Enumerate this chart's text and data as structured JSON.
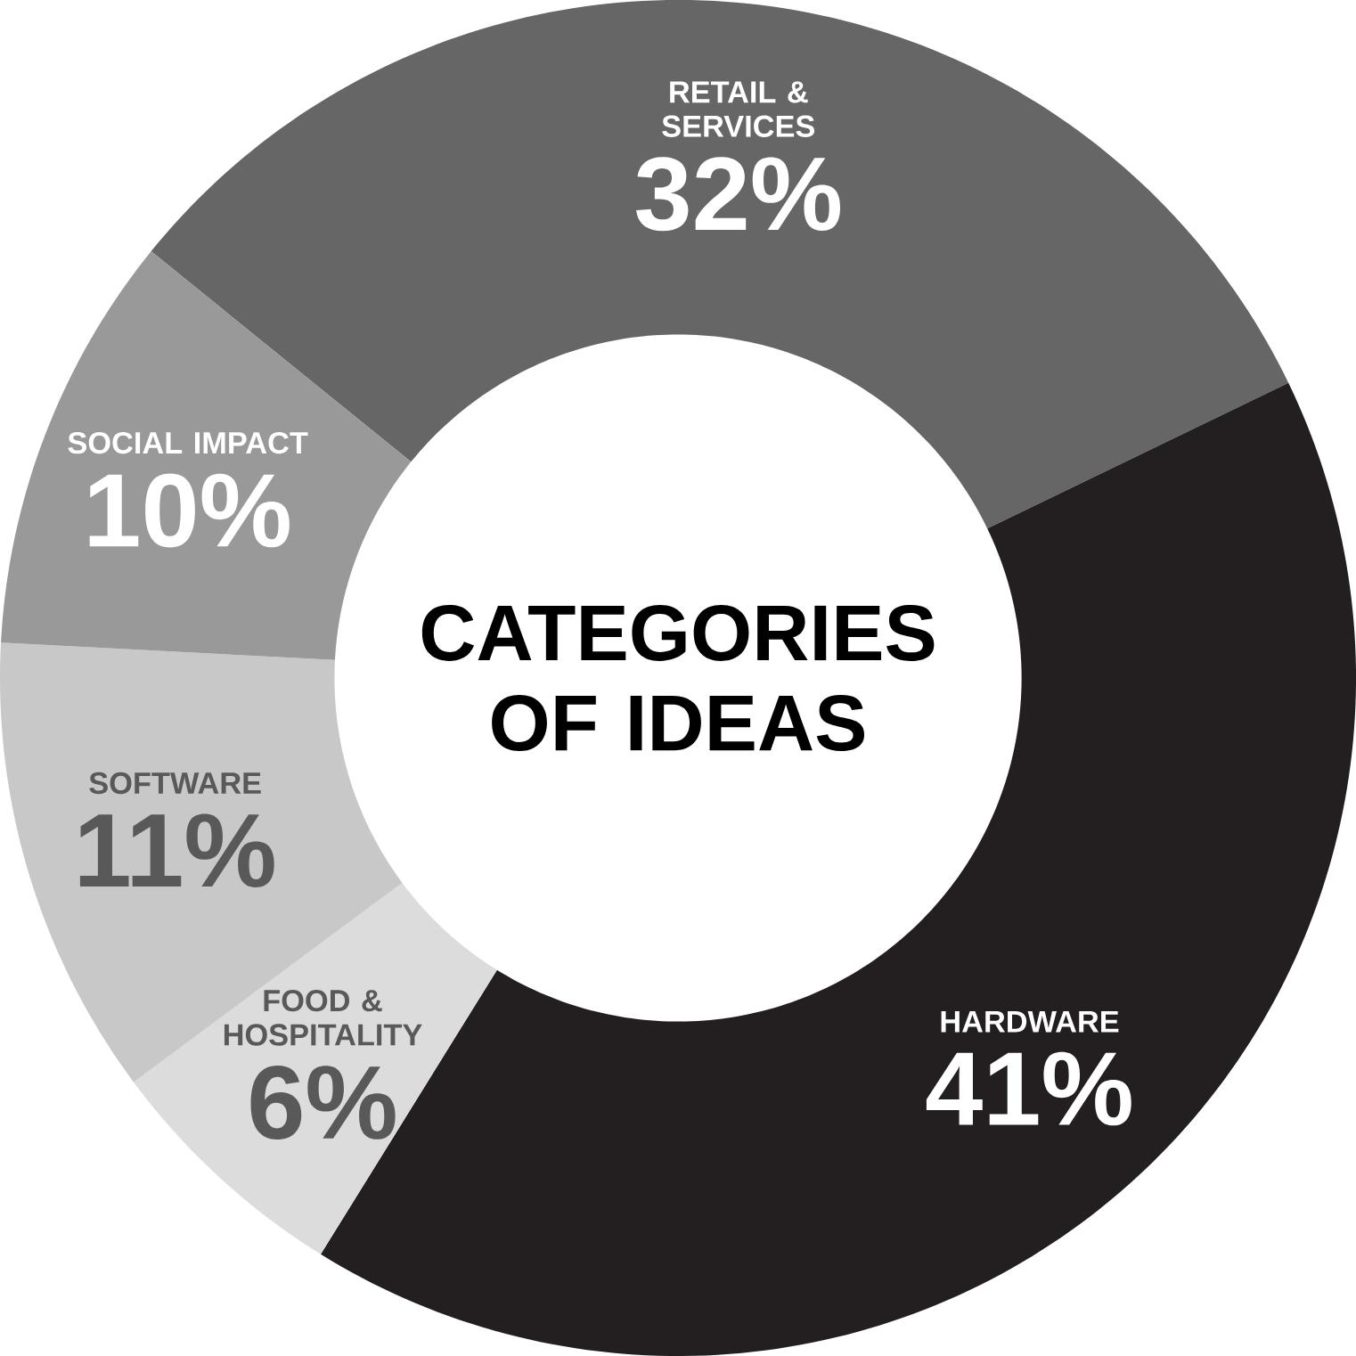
{
  "chart_data": {
    "type": "donut",
    "title": "CATEGORIES OF IDEAS",
    "categories": [
      "RETAIL & SERVICES",
      "HARDWARE",
      "FOOD & HOSPITALITY",
      "SOFTWARE",
      "SOCIAL IMPACT"
    ],
    "values": [
      32,
      41,
      6,
      11,
      10
    ],
    "value_labels": [
      "32%",
      "41%",
      "6%",
      "11%",
      "10%"
    ],
    "colors": [
      "#666666",
      "#231f20",
      "#dcdcdc",
      "#c8c8c8",
      "#999999"
    ]
  }
}
